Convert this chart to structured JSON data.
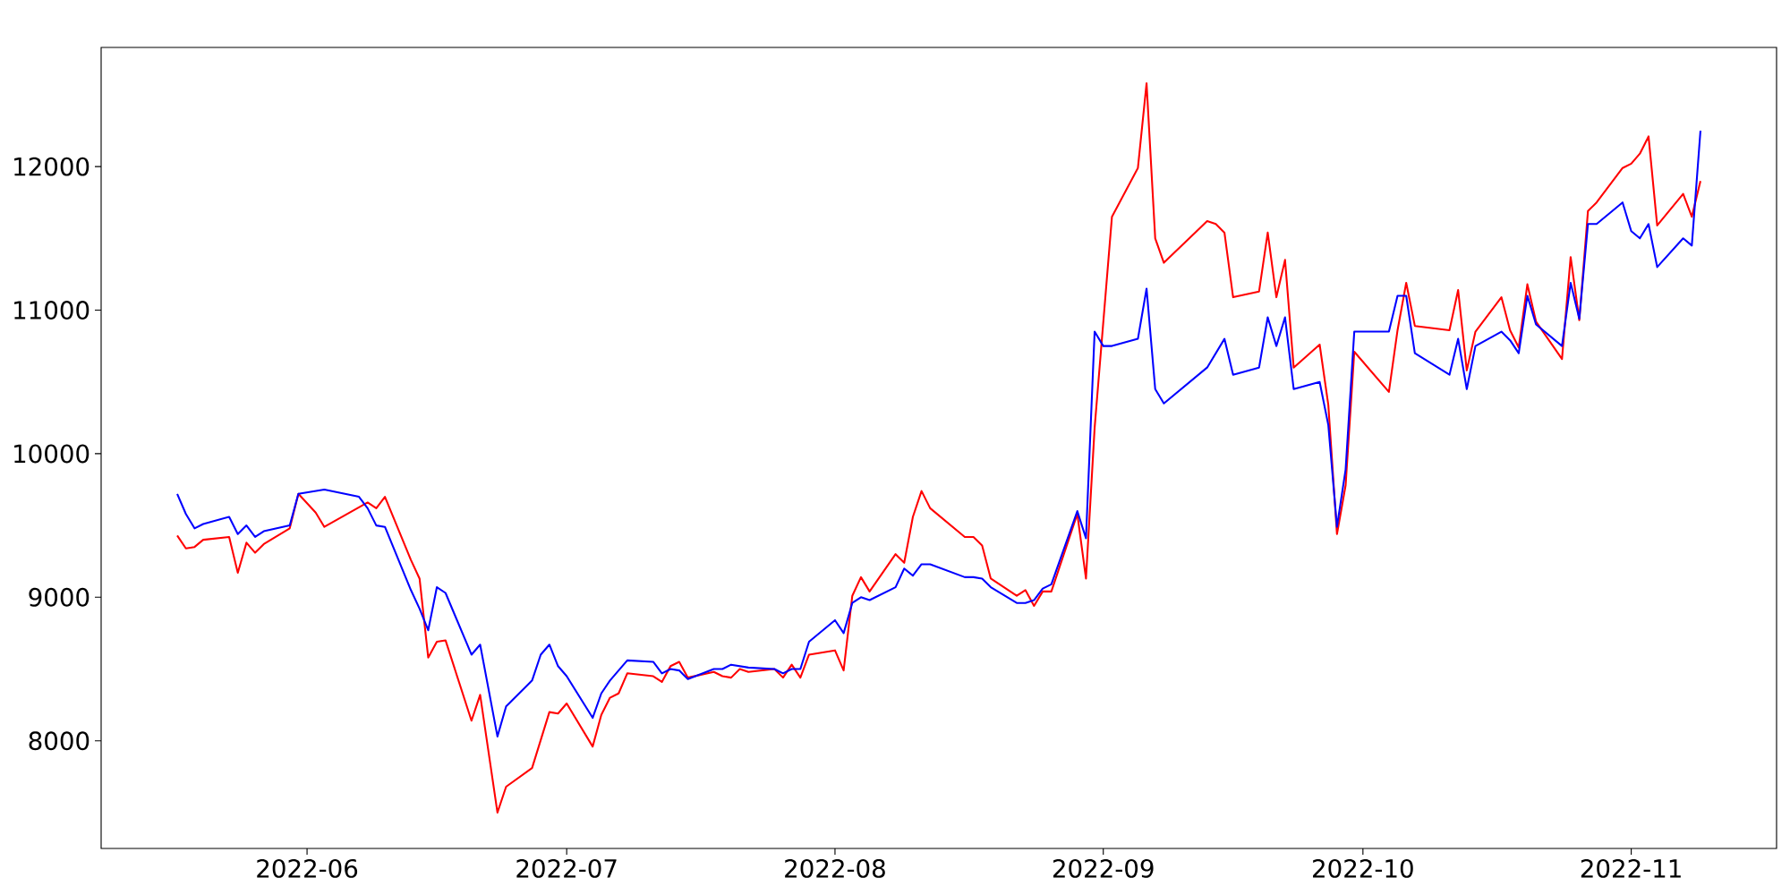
{
  "chart_data": {
    "type": "line",
    "xlim": [
      "2022-05-08T05:00",
      "2022-11-17T19:00"
    ],
    "ylim": [
      7250,
      12830
    ],
    "xticks": [
      {
        "value": "2022-06-01",
        "label": "2022-06"
      },
      {
        "value": "2022-07-01",
        "label": "2022-07"
      },
      {
        "value": "2022-08-01",
        "label": "2022-08"
      },
      {
        "value": "2022-09-01",
        "label": "2022-09"
      },
      {
        "value": "2022-10-01",
        "label": "2022-10"
      },
      {
        "value": "2022-11-01",
        "label": "2022-11"
      }
    ],
    "yticks": [
      8000,
      9000,
      10000,
      11000,
      12000
    ],
    "series": [
      {
        "color": "#ff0000",
        "x": [
          "2022-05-17",
          "2022-05-18",
          "2022-05-19",
          "2022-05-20",
          "2022-05-23",
          "2022-05-24",
          "2022-05-25",
          "2022-05-26",
          "2022-05-27",
          "2022-05-30",
          "2022-05-31",
          "2022-06-02",
          "2022-06-03",
          "2022-06-08",
          "2022-06-09",
          "2022-06-10",
          "2022-06-13",
          "2022-06-14",
          "2022-06-15",
          "2022-06-16",
          "2022-06-17",
          "2022-06-20",
          "2022-06-21",
          "2022-06-23",
          "2022-06-24",
          "2022-06-27",
          "2022-06-29",
          "2022-06-30",
          "2022-07-01",
          "2022-07-04",
          "2022-07-05",
          "2022-07-06",
          "2022-07-07",
          "2022-07-08",
          "2022-07-11",
          "2022-07-12",
          "2022-07-13",
          "2022-07-14",
          "2022-07-15",
          "2022-07-18",
          "2022-07-19",
          "2022-07-20",
          "2022-07-21",
          "2022-07-22",
          "2022-07-25",
          "2022-07-26",
          "2022-07-27",
          "2022-07-28",
          "2022-07-29",
          "2022-08-01",
          "2022-08-02",
          "2022-08-03",
          "2022-08-04",
          "2022-08-05",
          "2022-08-08",
          "2022-08-09",
          "2022-08-10",
          "2022-08-11",
          "2022-08-12",
          "2022-08-16",
          "2022-08-17",
          "2022-08-18",
          "2022-08-19",
          "2022-08-22",
          "2022-08-23",
          "2022-08-24",
          "2022-08-25",
          "2022-08-26",
          "2022-08-29",
          "2022-08-30",
          "2022-08-31",
          "2022-09-02",
          "2022-09-05",
          "2022-09-06",
          "2022-09-07",
          "2022-09-08",
          "2022-09-13",
          "2022-09-14",
          "2022-09-15",
          "2022-09-16",
          "2022-09-19",
          "2022-09-20",
          "2022-09-21",
          "2022-09-22",
          "2022-09-23",
          "2022-09-26",
          "2022-09-27",
          "2022-09-28",
          "2022-09-29",
          "2022-09-30",
          "2022-10-04",
          "2022-10-05",
          "2022-10-06",
          "2022-10-07",
          "2022-10-11",
          "2022-10-12",
          "2022-10-13",
          "2022-10-14",
          "2022-10-17",
          "2022-10-18",
          "2022-10-19",
          "2022-10-20",
          "2022-10-21",
          "2022-10-24",
          "2022-10-25",
          "2022-10-26",
          "2022-10-27",
          "2022-10-28",
          "2022-10-31",
          "2022-11-01",
          "2022-11-02",
          "2022-11-03",
          "2022-11-04",
          "2022-11-07",
          "2022-11-08",
          "2022-11-09"
        ],
        "values": [
          9430,
          9340,
          9350,
          9400,
          9420,
          9170,
          9380,
          9310,
          9370,
          9480,
          9720,
          9590,
          9490,
          9660,
          9620,
          9700,
          9260,
          9130,
          8580,
          8690,
          8700,
          8140,
          8320,
          7500,
          7680,
          7810,
          8200,
          8190,
          8260,
          7960,
          8180,
          8300,
          8330,
          8470,
          8450,
          8410,
          8520,
          8550,
          8440,
          8480,
          8450,
          8440,
          8500,
          8480,
          8500,
          8440,
          8530,
          8440,
          8600,
          8630,
          8490,
          9010,
          9140,
          9040,
          9300,
          9240,
          9560,
          9740,
          9620,
          9420,
          9420,
          9360,
          9130,
          9010,
          9050,
          8940,
          9040,
          9040,
          9580,
          9130,
          10180,
          11650,
          11990,
          12580,
          11500,
          11330,
          11620,
          11600,
          11540,
          11090,
          11130,
          11540,
          11090,
          11350,
          10600,
          10760,
          10340,
          9440,
          9780,
          10710,
          10430,
          10860,
          11190,
          10890,
          10860,
          11140,
          10580,
          10850,
          11090,
          10860,
          10740,
          11180,
          10920,
          10660,
          11370,
          10930,
          11690,
          11750,
          11990,
          12020,
          12090,
          12210,
          11590,
          11810,
          11650,
          11900
        ]
      },
      {
        "color": "#0000ff",
        "x": [
          "2022-05-17",
          "2022-05-18",
          "2022-05-19",
          "2022-05-20",
          "2022-05-23",
          "2022-05-24",
          "2022-05-25",
          "2022-05-26",
          "2022-05-27",
          "2022-05-30",
          "2022-05-31",
          "2022-06-03",
          "2022-06-07",
          "2022-06-08",
          "2022-06-09",
          "2022-06-10",
          "2022-06-13",
          "2022-06-14",
          "2022-06-15",
          "2022-06-16",
          "2022-06-17",
          "2022-06-20",
          "2022-06-21",
          "2022-06-23",
          "2022-06-24",
          "2022-06-27",
          "2022-06-28",
          "2022-06-29",
          "2022-06-30",
          "2022-07-01",
          "2022-07-04",
          "2022-07-05",
          "2022-07-06",
          "2022-07-08",
          "2022-07-11",
          "2022-07-12",
          "2022-07-13",
          "2022-07-14",
          "2022-07-15",
          "2022-07-18",
          "2022-07-19",
          "2022-07-20",
          "2022-07-22",
          "2022-07-25",
          "2022-07-26",
          "2022-07-27",
          "2022-07-28",
          "2022-07-29",
          "2022-08-01",
          "2022-08-02",
          "2022-08-03",
          "2022-08-04",
          "2022-08-05",
          "2022-08-08",
          "2022-08-09",
          "2022-08-10",
          "2022-08-11",
          "2022-08-12",
          "2022-08-16",
          "2022-08-17",
          "2022-08-18",
          "2022-08-19",
          "2022-08-22",
          "2022-08-23",
          "2022-08-24",
          "2022-08-25",
          "2022-08-26",
          "2022-08-29",
          "2022-08-30",
          "2022-08-31",
          "2022-09-01",
          "2022-09-02",
          "2022-09-05",
          "2022-09-06",
          "2022-09-07",
          "2022-09-08",
          "2022-09-13",
          "2022-09-15",
          "2022-09-16",
          "2022-09-19",
          "2022-09-20",
          "2022-09-21",
          "2022-09-22",
          "2022-09-23",
          "2022-09-26",
          "2022-09-27",
          "2022-09-28",
          "2022-09-29",
          "2022-09-30",
          "2022-10-04",
          "2022-10-05",
          "2022-10-06",
          "2022-10-07",
          "2022-10-11",
          "2022-10-12",
          "2022-10-13",
          "2022-10-14",
          "2022-10-17",
          "2022-10-18",
          "2022-10-19",
          "2022-10-20",
          "2022-10-21",
          "2022-10-24",
          "2022-10-25",
          "2022-10-26",
          "2022-10-27",
          "2022-10-28",
          "2022-10-31",
          "2022-11-01",
          "2022-11-02",
          "2022-11-03",
          "2022-11-04",
          "2022-11-07",
          "2022-11-08",
          "2022-11-09"
        ],
        "values": [
          9720,
          9580,
          9480,
          9510,
          9560,
          9440,
          9500,
          9420,
          9460,
          9500,
          9720,
          9750,
          9700,
          9620,
          9500,
          9490,
          9050,
          8920,
          8770,
          9070,
          9030,
          8600,
          8670,
          8030,
          8240,
          8420,
          8600,
          8670,
          8520,
          8450,
          8160,
          8330,
          8420,
          8560,
          8550,
          8470,
          8500,
          8490,
          8430,
          8500,
          8500,
          8530,
          8510,
          8500,
          8470,
          8500,
          8500,
          8690,
          8840,
          8750,
          8960,
          9000,
          8980,
          9070,
          9200,
          9150,
          9230,
          9230,
          9140,
          9140,
          9130,
          9070,
          8960,
          8960,
          8980,
          9060,
          9090,
          9600,
          9410,
          10850,
          10750,
          10750,
          10800,
          11150,
          10450,
          10350,
          10600,
          10800,
          10550,
          10600,
          10950,
          10750,
          10950,
          10450,
          10500,
          10200,
          9490,
          9890,
          10850,
          10850,
          11100,
          11100,
          10700,
          10550,
          10800,
          10450,
          10750,
          10850,
          10790,
          10700,
          11100,
          10900,
          10750,
          11190,
          10940,
          11600,
          11600,
          11750,
          11550,
          11500,
          11600,
          11300,
          11500,
          11450,
          12250
        ]
      }
    ]
  }
}
